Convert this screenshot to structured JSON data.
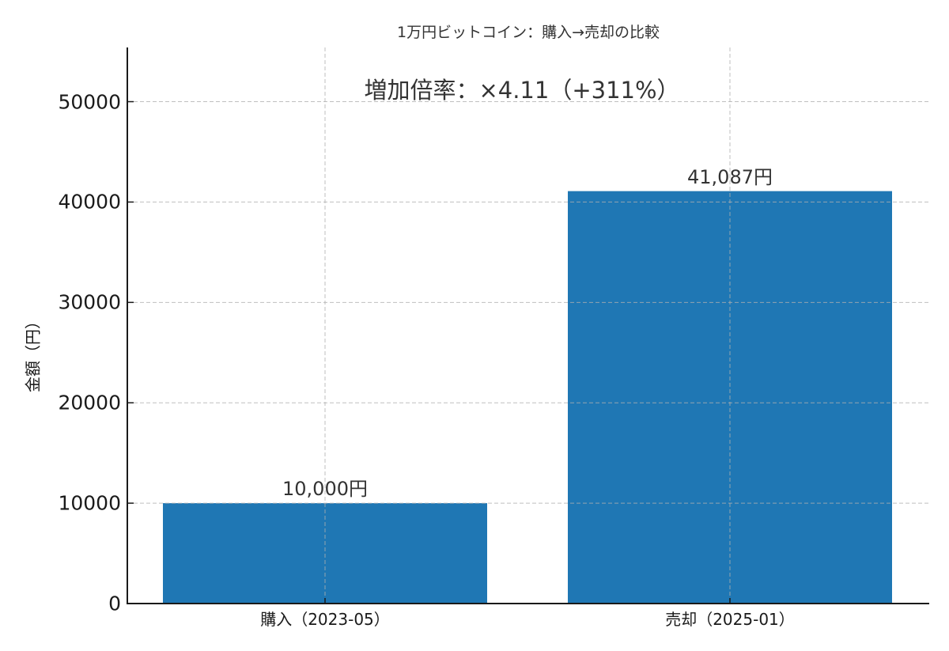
{
  "chart_data": {
    "type": "bar",
    "title": "1万円ビットコイン：購入→売却の比較",
    "annotation": "増加倍率：×4.11（+311%）",
    "categories": [
      "購入（2023-05）",
      "売却（2025-01）"
    ],
    "values": [
      10000,
      41087
    ],
    "value_labels": [
      "10,000円",
      "41,087円"
    ],
    "xlabel": "",
    "ylabel": "金額（円）",
    "ylim": [
      0,
      55400
    ],
    "yticks": [
      0,
      10000,
      20000,
      30000,
      40000,
      50000
    ],
    "ytick_labels": [
      "0",
      "10000",
      "20000",
      "30000",
      "40000",
      "50000"
    ],
    "grid": true,
    "legend": null,
    "bar_color": "#1f77b4"
  },
  "colors": {
    "bar": "#1f77b4",
    "grid": "#b0b0b0",
    "axis": "#1a1a1a"
  }
}
